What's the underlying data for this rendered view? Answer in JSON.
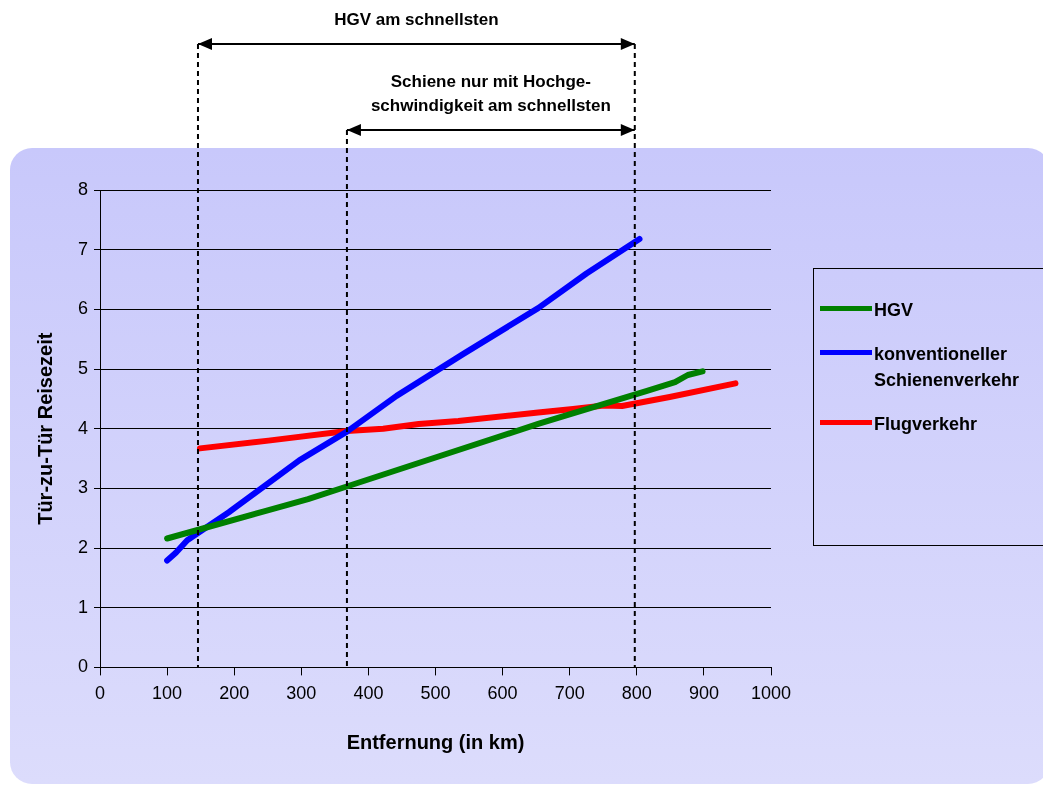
{
  "chart_data": {
    "type": "line",
    "xlabel": "Entfernung (in km)",
    "ylabel": "Tür-zu-Tür Reisezeit",
    "xlim": [
      0,
      1000
    ],
    "xticks": [
      0,
      100,
      200,
      300,
      400,
      500,
      600,
      700,
      800,
      900,
      1000
    ],
    "ylim": [
      0,
      8
    ],
    "yticks": [
      0,
      1,
      2,
      3,
      4,
      5,
      6,
      7,
      8
    ],
    "grid": "y",
    "legend": "right",
    "marker": "none",
    "line_style": "solid",
    "ref_lines": [
      {
        "axis": "x",
        "value": 146,
        "line_style": "dashed"
      },
      {
        "axis": "x",
        "value": 368,
        "line_style": "dashed"
      },
      {
        "axis": "x",
        "value": 797,
        "line_style": "dashed"
      }
    ],
    "annotations": [
      "HGV am schnellsten",
      "Schiene nur mit Hochge-\nschwindigkeit am schnellsten"
    ],
    "series": [
      {
        "name": "HGV",
        "color": "#008000",
        "x": [
          100,
          310,
          370,
          653,
          814,
          857,
          876,
          898
        ],
        "values": [
          2.16,
          2.82,
          3.04,
          4.08,
          4.63,
          4.78,
          4.9,
          4.96
        ]
      },
      {
        "name": "konventioneller Schienenverkehr",
        "color": "#0000ff",
        "x": [
          100,
          113,
          130,
          192,
          297,
          368,
          442,
          541,
          653,
          725,
          804
        ],
        "values": [
          1.79,
          1.92,
          2.13,
          2.6,
          3.47,
          3.95,
          4.55,
          5.25,
          6.02,
          6.6,
          7.18
        ]
      },
      {
        "name": "Flugverkehr",
        "color": "#ff0000",
        "x": [
          149,
          251,
          368,
          422,
          475,
          534,
          653,
          705,
          751,
          778,
          849,
          947
        ],
        "values": [
          3.67,
          3.8,
          3.96,
          4.0,
          4.08,
          4.13,
          4.27,
          4.33,
          4.39,
          4.38,
          4.53,
          4.76
        ]
      }
    ]
  }
}
